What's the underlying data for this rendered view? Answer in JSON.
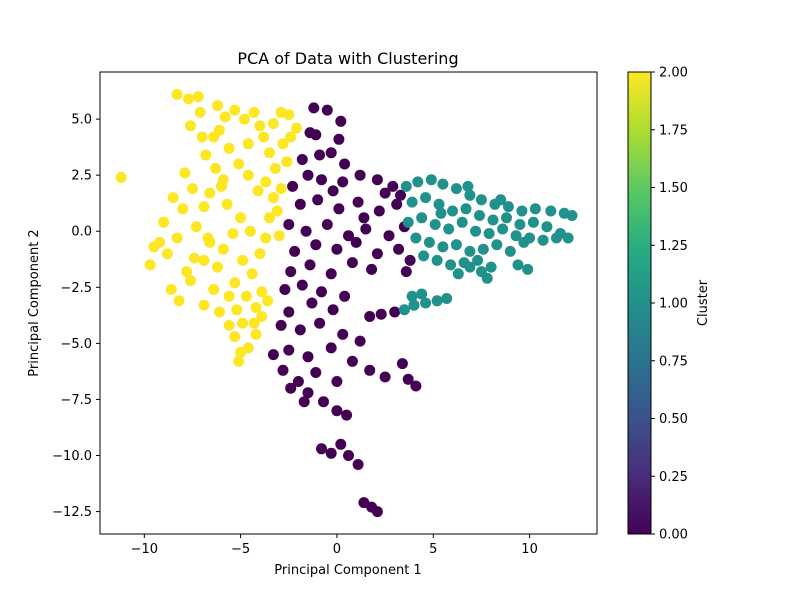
{
  "chart_data": {
    "type": "scatter",
    "title": "PCA of Data with Clustering",
    "xlabel": "Principal Component 1",
    "ylabel": "Principal Component 2",
    "xlim": [
      -12.3,
      13.5
    ],
    "ylim": [
      -13.5,
      7.1
    ],
    "xticks": [
      -10,
      -5,
      0,
      5,
      10
    ],
    "yticks": [
      -12.5,
      -10.0,
      -7.5,
      -5.0,
      -2.5,
      0.0,
      2.5,
      5.0
    ],
    "grid": false,
    "colormap": "viridis",
    "colors": {
      "cluster_0": "#440154",
      "cluster_1": "#21918c",
      "cluster_2": "#fde725"
    },
    "colorbar": {
      "label": "Cluster",
      "range": [
        0.0,
        2.0
      ],
      "ticks": [
        "0.00",
        "0.25",
        "0.50",
        "0.75",
        "1.00",
        "1.25",
        "1.50",
        "1.75",
        "2.00"
      ]
    },
    "series": [
      {
        "cluster": 2,
        "points": [
          [
            -11.2,
            2.4
          ],
          [
            -9.5,
            -0.7
          ],
          [
            -9.7,
            -1.5
          ],
          [
            -9.2,
            -0.5
          ],
          [
            -8.8,
            -1.0
          ],
          [
            -9.0,
            0.4
          ],
          [
            -8.5,
            1.5
          ],
          [
            -8.0,
            1.0
          ],
          [
            -8.3,
            -0.3
          ],
          [
            -7.8,
            -1.8
          ],
          [
            -8.6,
            -2.6
          ],
          [
            -8.2,
            -3.1
          ],
          [
            -7.6,
            -2.2
          ],
          [
            -8.3,
            6.1
          ],
          [
            -7.7,
            5.9
          ],
          [
            -7.2,
            6.0
          ],
          [
            -7.6,
            4.7
          ],
          [
            -7.0,
            4.2
          ],
          [
            -6.8,
            3.4
          ],
          [
            -7.9,
            2.6
          ],
          [
            -7.5,
            1.9
          ],
          [
            -6.9,
            1.1
          ],
          [
            -7.3,
            0.2
          ],
          [
            -6.6,
            -0.5
          ],
          [
            -6.9,
            -1.3
          ],
          [
            -6.4,
            -2.6
          ],
          [
            -6.9,
            -3.3
          ],
          [
            -6.1,
            -3.6
          ],
          [
            -5.6,
            -4.2
          ],
          [
            -5.3,
            -4.7
          ],
          [
            -5.0,
            -5.4
          ],
          [
            -5.1,
            -5.8
          ],
          [
            -4.6,
            -5.2
          ],
          [
            -4.3,
            -4.1
          ],
          [
            -4.2,
            -3.4
          ],
          [
            -3.9,
            -2.7
          ],
          [
            -4.4,
            -1.9
          ],
          [
            -4.0,
            -1.0
          ],
          [
            -3.7,
            -0.3
          ],
          [
            -3.5,
            0.6
          ],
          [
            -3.3,
            1.5
          ],
          [
            -3.7,
            2.2
          ],
          [
            -3.2,
            2.8
          ],
          [
            -3.5,
            3.5
          ],
          [
            -3.8,
            4.2
          ],
          [
            -3.3,
            4.8
          ],
          [
            -2.9,
            5.3
          ],
          [
            -2.5,
            5.2
          ],
          [
            -2.1,
            4.6
          ],
          [
            -4.3,
            5.3
          ],
          [
            -4.8,
            5.0
          ],
          [
            -5.3,
            5.4
          ],
          [
            -5.8,
            5.1
          ],
          [
            -6.1,
            4.5
          ],
          [
            -5.6,
            3.7
          ],
          [
            -5.1,
            3.0
          ],
          [
            -4.6,
            2.5
          ],
          [
            -5.9,
            2.3
          ],
          [
            -6.3,
            2.8
          ],
          [
            -6.6,
            1.7
          ],
          [
            -5.7,
            1.2
          ],
          [
            -5.0,
            0.6
          ],
          [
            -5.4,
            -0.1
          ],
          [
            -5.9,
            -0.8
          ],
          [
            -4.9,
            -1.3
          ],
          [
            -5.3,
            -2.3
          ],
          [
            -4.7,
            -2.9
          ],
          [
            -4.5,
            0.0
          ],
          [
            -4.1,
            1.8
          ],
          [
            -2.8,
            3.9
          ],
          [
            -2.4,
            4.2
          ],
          [
            -2.6,
            3.1
          ],
          [
            -2.9,
            1.9
          ],
          [
            -3.1,
            0.9
          ],
          [
            -3.0,
            -0.2
          ],
          [
            -6.4,
            4.2
          ],
          [
            -7.1,
            5.3
          ],
          [
            -6.2,
            5.6
          ],
          [
            -4.0,
            4.7
          ],
          [
            -4.6,
            3.9
          ],
          [
            -6.7,
            -0.3
          ],
          [
            -7.4,
            -1.2
          ],
          [
            -6.2,
            -1.6
          ],
          [
            -5.6,
            -2.9
          ],
          [
            -4.9,
            -4.1
          ],
          [
            -5.2,
            -3.5
          ],
          [
            -3.6,
            -3.1
          ],
          [
            -3.9,
            -3.8
          ],
          [
            -4.2,
            -4.6
          ],
          [
            -6.0,
            2.0
          ]
        ]
      },
      {
        "cluster": 0,
        "points": [
          [
            -1.2,
            5.5
          ],
          [
            -0.5,
            5.4
          ],
          [
            0.2,
            4.9
          ],
          [
            -1.4,
            4.4
          ],
          [
            -1.8,
            3.2
          ],
          [
            -0.9,
            3.4
          ],
          [
            -0.3,
            3.5
          ],
          [
            0.4,
            3.0
          ],
          [
            -1.5,
            2.5
          ],
          [
            -2.3,
            2.0
          ],
          [
            -0.8,
            2.3
          ],
          [
            0.3,
            2.2
          ],
          [
            1.2,
            2.5
          ],
          [
            2.1,
            2.3
          ],
          [
            2.9,
            2.0
          ],
          [
            3.3,
            1.6
          ],
          [
            -1.9,
            1.2
          ],
          [
            -1.0,
            1.4
          ],
          [
            0.1,
            1.0
          ],
          [
            1.1,
            1.3
          ],
          [
            2.2,
            0.9
          ],
          [
            3.1,
            1.2
          ],
          [
            -2.5,
            0.3
          ],
          [
            -1.6,
            0.0
          ],
          [
            -0.5,
            0.3
          ],
          [
            0.6,
            -0.2
          ],
          [
            1.5,
            0.1
          ],
          [
            2.7,
            -0.2
          ],
          [
            3.5,
            0.2
          ],
          [
            -2.2,
            -0.9
          ],
          [
            -1.1,
            -0.6
          ],
          [
            0.0,
            -0.8
          ],
          [
            1.0,
            -0.5
          ],
          [
            2.1,
            -1.0
          ],
          [
            3.2,
            -0.8
          ],
          [
            -2.4,
            -1.8
          ],
          [
            -1.4,
            -1.5
          ],
          [
            -0.3,
            -1.9
          ],
          [
            0.8,
            -1.4
          ],
          [
            1.8,
            -1.7
          ],
          [
            3.6,
            -1.8
          ],
          [
            -2.7,
            -2.6
          ],
          [
            -1.8,
            -2.4
          ],
          [
            -0.8,
            -2.7
          ],
          [
            0.4,
            -2.9
          ],
          [
            -2.5,
            -3.6
          ],
          [
            -1.3,
            -3.2
          ],
          [
            -0.2,
            -3.5
          ],
          [
            -2.9,
            -4.2
          ],
          [
            -1.9,
            -4.4
          ],
          [
            -0.9,
            -4.1
          ],
          [
            0.3,
            -4.6
          ],
          [
            1.2,
            -4.9
          ],
          [
            -2.5,
            -5.3
          ],
          [
            -1.5,
            -5.6
          ],
          [
            -0.3,
            -5.2
          ],
          [
            0.8,
            -5.8
          ],
          [
            -3.3,
            -5.5
          ],
          [
            -2.8,
            -6.2
          ],
          [
            -2.0,
            -6.7
          ],
          [
            -1.1,
            -6.3
          ],
          [
            0.0,
            -6.7
          ],
          [
            1.7,
            -6.2
          ],
          [
            2.5,
            -6.5
          ],
          [
            3.4,
            -5.9
          ],
          [
            3.7,
            -6.6
          ],
          [
            4.1,
            -6.9
          ],
          [
            -2.4,
            -7.0
          ],
          [
            -1.5,
            -7.2
          ],
          [
            -1.7,
            -7.6
          ],
          [
            -0.7,
            -7.6
          ],
          [
            0.0,
            -8.0
          ],
          [
            0.5,
            -8.2
          ],
          [
            -0.8,
            -9.7
          ],
          [
            -0.3,
            -9.9
          ],
          [
            0.2,
            -9.5
          ],
          [
            0.6,
            -10.0
          ],
          [
            1.1,
            -10.4
          ],
          [
            1.4,
            -12.1
          ],
          [
            1.8,
            -12.3
          ],
          [
            2.1,
            -12.5
          ],
          [
            1.7,
            -3.8
          ],
          [
            2.3,
            -3.7
          ],
          [
            3.0,
            -3.6
          ],
          [
            1.4,
            0.6
          ],
          [
            -0.2,
            1.8
          ],
          [
            2.5,
            1.7
          ],
          [
            3.8,
            -1.3
          ],
          [
            -1.1,
            4.3
          ],
          [
            0.1,
            4.1
          ]
        ]
      },
      {
        "cluster": 1,
        "points": [
          [
            3.6,
            2.0
          ],
          [
            4.2,
            2.2
          ],
          [
            4.9,
            2.3
          ],
          [
            5.5,
            2.1
          ],
          [
            6.2,
            1.9
          ],
          [
            6.9,
            1.6
          ],
          [
            7.5,
            1.4
          ],
          [
            8.2,
            1.2
          ],
          [
            8.9,
            1.1
          ],
          [
            9.6,
            0.9
          ],
          [
            10.3,
            1.0
          ],
          [
            11.1,
            0.9
          ],
          [
            11.8,
            0.8
          ],
          [
            12.2,
            0.7
          ],
          [
            3.9,
            1.3
          ],
          [
            4.6,
            1.5
          ],
          [
            5.3,
            1.2
          ],
          [
            6.0,
            0.9
          ],
          [
            6.7,
            1.0
          ],
          [
            7.4,
            0.7
          ],
          [
            8.1,
            0.5
          ],
          [
            8.8,
            0.6
          ],
          [
            9.5,
            0.3
          ],
          [
            10.2,
            0.4
          ],
          [
            10.9,
            0.2
          ],
          [
            11.6,
            -0.1
          ],
          [
            3.7,
            0.4
          ],
          [
            4.4,
            0.6
          ],
          [
            5.1,
            0.3
          ],
          [
            5.8,
            0.1
          ],
          [
            6.5,
            0.4
          ],
          [
            7.2,
            0.0
          ],
          [
            7.9,
            -0.1
          ],
          [
            8.6,
            0.1
          ],
          [
            9.3,
            -0.2
          ],
          [
            10.0,
            -0.3
          ],
          [
            10.7,
            -0.4
          ],
          [
            11.4,
            -0.3
          ],
          [
            12.0,
            -0.3
          ],
          [
            4.1,
            -0.3
          ],
          [
            4.8,
            -0.5
          ],
          [
            5.5,
            -0.7
          ],
          [
            6.2,
            -0.6
          ],
          [
            6.9,
            -0.9
          ],
          [
            7.6,
            -0.8
          ],
          [
            8.3,
            -0.6
          ],
          [
            9.0,
            -0.9
          ],
          [
            9.7,
            -0.5
          ],
          [
            4.5,
            -1.1
          ],
          [
            5.2,
            -1.3
          ],
          [
            5.9,
            -1.5
          ],
          [
            6.6,
            -1.4
          ],
          [
            7.3,
            -1.3
          ],
          [
            8.0,
            -1.6
          ],
          [
            6.3,
            -1.9
          ],
          [
            7.5,
            -1.8
          ],
          [
            9.4,
            -1.5
          ],
          [
            7.8,
            -2.1
          ],
          [
            9.9,
            -1.7
          ],
          [
            6.9,
            -1.6
          ],
          [
            3.5,
            -3.5
          ],
          [
            4.0,
            -3.3
          ],
          [
            4.6,
            -3.2
          ],
          [
            5.2,
            -3.1
          ],
          [
            5.7,
            -3.0
          ],
          [
            3.9,
            -2.9
          ],
          [
            4.4,
            -2.8
          ],
          [
            5.4,
            0.8
          ],
          [
            6.8,
            2.0
          ],
          [
            8.5,
            1.4
          ]
        ]
      }
    ]
  }
}
